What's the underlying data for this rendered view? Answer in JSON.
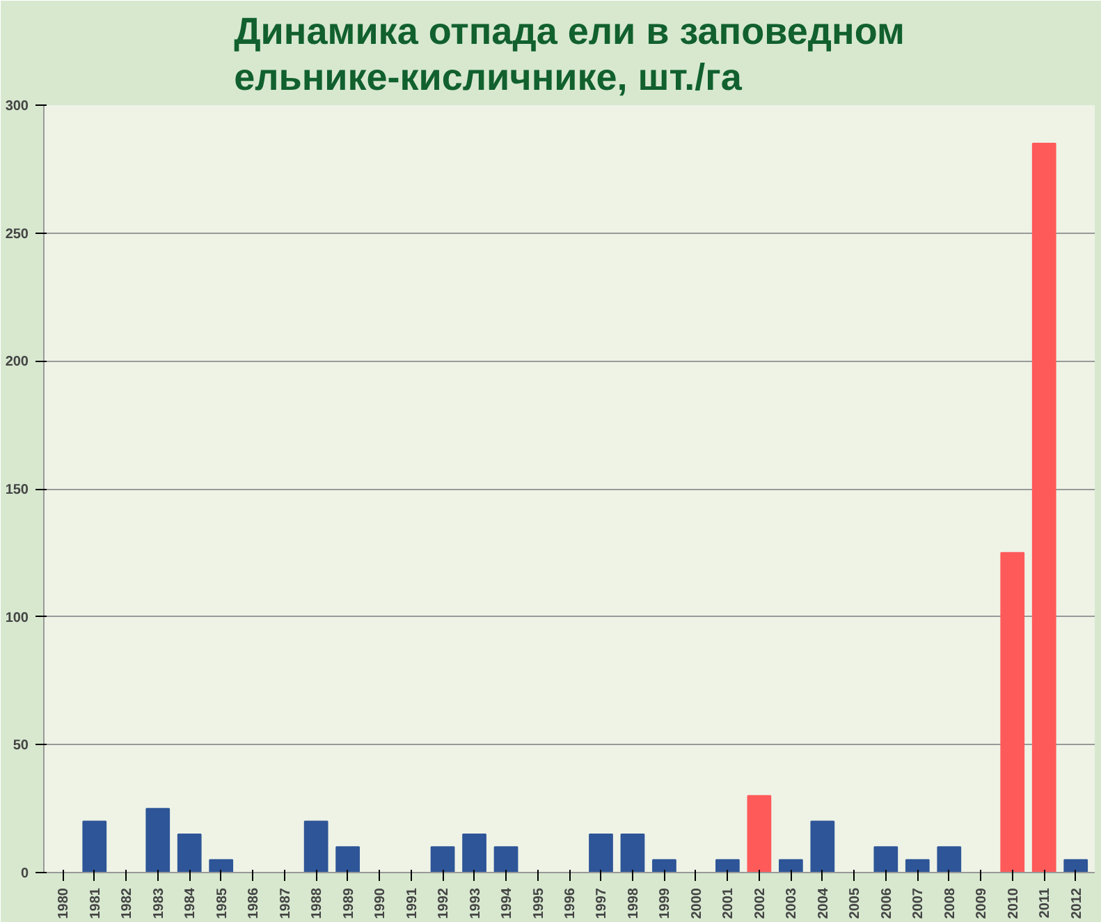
{
  "chart_data": {
    "type": "bar",
    "title": "Динамика отпада ели в заповедном\nельнике-кисличнике, шт./га",
    "categories": [
      "1980",
      "1981",
      "1982",
      "1983",
      "1984",
      "1985",
      "1986",
      "1987",
      "1988",
      "1989",
      "1990",
      "1991",
      "1992",
      "1993",
      "1994",
      "1995",
      "1996",
      "1997",
      "1998",
      "1999",
      "2000",
      "2001",
      "2002",
      "2003",
      "2004",
      "2005",
      "2006",
      "2007",
      "2008",
      "2009",
      "2010",
      "2011",
      "2012"
    ],
    "values": [
      0,
      20,
      0,
      25,
      15,
      5,
      0,
      0,
      20,
      10,
      0,
      0,
      10,
      15,
      10,
      0,
      0,
      15,
      15,
      5,
      0,
      5,
      30,
      5,
      20,
      0,
      10,
      5,
      10,
      0,
      125,
      285,
      5
    ],
    "colors": [
      "#2e5597",
      "#2e5597",
      "#2e5597",
      "#2e5597",
      "#2e5597",
      "#2e5597",
      "#2e5597",
      "#2e5597",
      "#2e5597",
      "#2e5597",
      "#2e5597",
      "#2e5597",
      "#2e5597",
      "#2e5597",
      "#2e5597",
      "#2e5597",
      "#2e5597",
      "#2e5597",
      "#2e5597",
      "#2e5597",
      "#2e5597",
      "#2e5597",
      "#ff5a5a",
      "#2e5597",
      "#2e5597",
      "#2e5597",
      "#2e5597",
      "#2e5597",
      "#2e5597",
      "#2e5597",
      "#ff5a5a",
      "#ff5a5a",
      "#2e5597"
    ],
    "ylim": [
      0,
      300
    ],
    "yticks": [
      0,
      50,
      100,
      150,
      200,
      250,
      300
    ],
    "grid": "y"
  }
}
